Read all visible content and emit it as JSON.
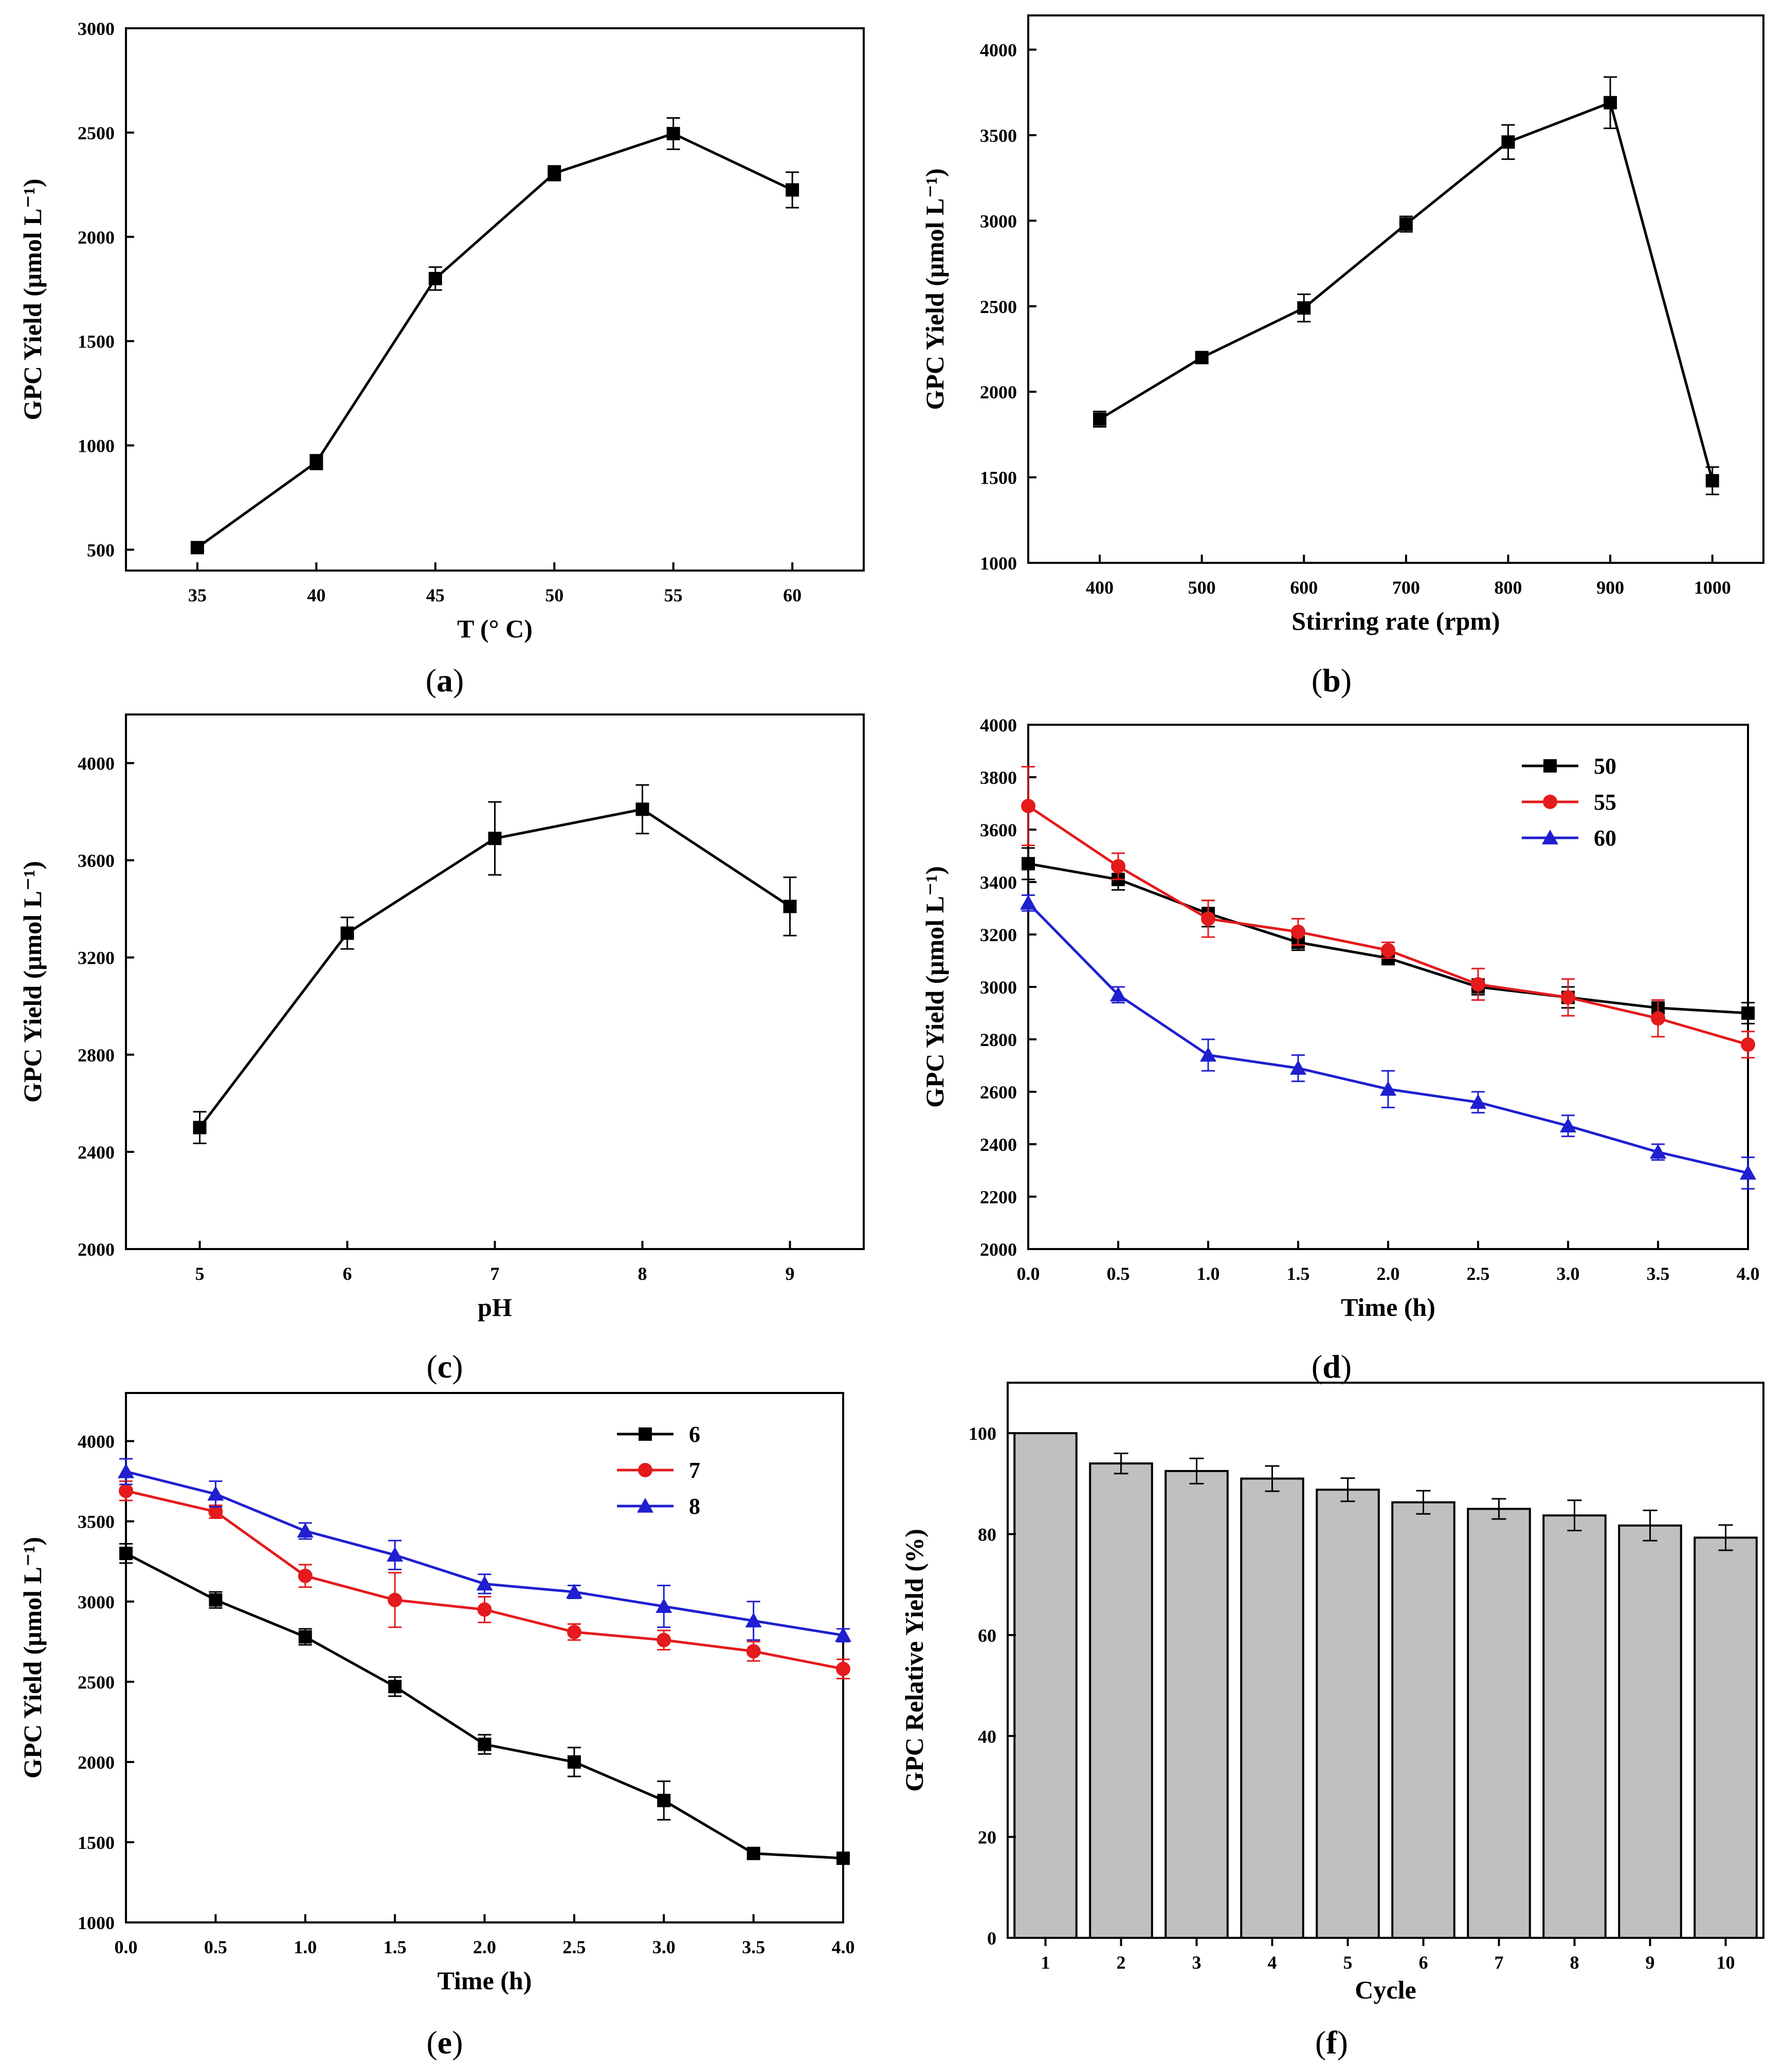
{
  "chart_data": [
    {
      "id": "a",
      "type": "line",
      "caption": "a",
      "xlabel": "T (° C)",
      "ylabel": "GPC Yield (μmol L⁻¹)",
      "xlim": [
        32,
        63
      ],
      "ylim": [
        400,
        3000
      ],
      "xticks": [
        35,
        40,
        45,
        50,
        55,
        60
      ],
      "yticks": [
        500,
        1000,
        1500,
        2000,
        2500,
        3000
      ],
      "xtick_labels": [
        "35",
        "40",
        "45",
        "50",
        "55",
        "60"
      ],
      "ytick_labels": [
        "500",
        "1000",
        "1500",
        "2000",
        "2500",
        "3000"
      ],
      "series": [
        {
          "name": "",
          "color": "#000000",
          "marker": "square",
          "x": [
            35,
            40,
            45,
            50,
            55,
            60
          ],
          "y": [
            510,
            920,
            1800,
            2305,
            2495,
            2225
          ],
          "err": [
            15,
            35,
            55,
            35,
            75,
            85
          ]
        }
      ]
    },
    {
      "id": "b",
      "type": "line",
      "caption": "b",
      "xlabel": "Stirring rate (rpm)",
      "ylabel": "GPC Yield (μmol L⁻¹)",
      "xlim": [
        330,
        1050
      ],
      "ylim": [
        1000,
        4200
      ],
      "xticks": [
        400,
        500,
        600,
        700,
        800,
        900,
        1000
      ],
      "yticks": [
        1000,
        1500,
        2000,
        2500,
        3000,
        3500,
        4000
      ],
      "xtick_labels": [
        "400",
        "500",
        "600",
        "700",
        "800",
        "900",
        "1000"
      ],
      "ytick_labels": [
        "1000",
        "1500",
        "2000",
        "2500",
        "3000",
        "3500",
        "4000"
      ],
      "series": [
        {
          "name": "",
          "color": "#000000",
          "marker": "square",
          "x": [
            400,
            500,
            600,
            700,
            800,
            900,
            1000
          ],
          "y": [
            1840,
            2200,
            2490,
            2980,
            3460,
            3690,
            1480
          ],
          "err": [
            45,
            30,
            80,
            45,
            100,
            150,
            80
          ]
        }
      ]
    },
    {
      "id": "c",
      "type": "line",
      "caption": "c",
      "xlabel": "pH",
      "ylabel": "GPC Yield (μmol L⁻¹)",
      "xlim": [
        4.5,
        9.5
      ],
      "ylim": [
        2000,
        4200
      ],
      "xticks": [
        5,
        6,
        7,
        8,
        9
      ],
      "yticks": [
        2000,
        2400,
        2800,
        3200,
        3600,
        4000
      ],
      "xtick_labels": [
        "5",
        "6",
        "7",
        "8",
        "9"
      ],
      "ytick_labels": [
        "2000",
        "2400",
        "2800",
        "3200",
        "3600",
        "4000"
      ],
      "series": [
        {
          "name": "",
          "color": "#000000",
          "marker": "square",
          "x": [
            5,
            6,
            7,
            8,
            9
          ],
          "y": [
            2500,
            3300,
            3690,
            3810,
            3410
          ],
          "err": [
            65,
            65,
            150,
            100,
            120
          ]
        }
      ]
    },
    {
      "id": "d",
      "type": "line",
      "caption": "d",
      "xlabel": "Time (h)",
      "ylabel": "GPC Yield (μmol L⁻¹)",
      "xlim": [
        0,
        4
      ],
      "ylim": [
        2000,
        4000
      ],
      "xticks": [
        0,
        0.5,
        1,
        1.5,
        2,
        2.5,
        3,
        3.5,
        4
      ],
      "yticks": [
        2000,
        2200,
        2400,
        2600,
        2800,
        3000,
        3200,
        3400,
        3600,
        3800,
        4000
      ],
      "xtick_labels": [
        "0.0",
        "0.5",
        "1.0",
        "1.5",
        "2.0",
        "2.5",
        "3.0",
        "3.5",
        "4.0"
      ],
      "ytick_labels": [
        "2000",
        "2200",
        "2400",
        "2600",
        "2800",
        "3000",
        "3200",
        "3400",
        "3600",
        "3800",
        "4000"
      ],
      "legend_position": "top-right",
      "series": [
        {
          "name": "50",
          "color": "#000000",
          "marker": "square",
          "x": [
            0,
            0.5,
            1,
            1.5,
            2,
            2.5,
            3,
            3.5,
            4
          ],
          "y": [
            3470,
            3410,
            3280,
            3170,
            3110,
            3000,
            2960,
            2920,
            2900
          ],
          "err": [
            60,
            40,
            50,
            30,
            25,
            30,
            40,
            30,
            40
          ]
        },
        {
          "name": "55",
          "color": "#e41a1c",
          "marker": "circle",
          "x": [
            0,
            0.5,
            1,
            1.5,
            2,
            2.5,
            3,
            3.5,
            4
          ],
          "y": [
            3690,
            3460,
            3260,
            3210,
            3140,
            3010,
            2960,
            2880,
            2780
          ],
          "err": [
            150,
            50,
            70,
            50,
            30,
            60,
            70,
            70,
            50
          ]
        },
        {
          "name": "60",
          "color": "#1f1fd0",
          "marker": "triangle",
          "x": [
            0,
            0.5,
            1,
            1.5,
            2,
            2.5,
            3,
            3.5,
            4
          ],
          "y": [
            3320,
            2970,
            2740,
            2690,
            2610,
            2560,
            2470,
            2370,
            2290
          ],
          "err": [
            30,
            30,
            60,
            50,
            70,
            40,
            40,
            30,
            60
          ]
        }
      ]
    },
    {
      "id": "e",
      "type": "line",
      "caption": "e",
      "xlabel": "Time (h)",
      "ylabel": "GPC Yield (μmol L⁻¹)",
      "xlim": [
        0,
        4
      ],
      "ylim": [
        1000,
        4300
      ],
      "xticks": [
        0,
        0.5,
        1,
        1.5,
        2,
        2.5,
        3,
        3.5,
        4
      ],
      "yticks": [
        1000,
        1500,
        2000,
        2500,
        3000,
        3500,
        4000
      ],
      "xtick_labels": [
        "0.0",
        "0.5",
        "1.0",
        "1.5",
        "2.0",
        "2.5",
        "3.0",
        "3.5",
        "4.0"
      ],
      "ytick_labels": [
        "1000",
        "1500",
        "2000",
        "2500",
        "3000",
        "3500",
        "4000"
      ],
      "legend_position": "top-right",
      "series": [
        {
          "name": "6",
          "color": "#000000",
          "marker": "square",
          "x": [
            0,
            0.5,
            1,
            1.5,
            2,
            2.5,
            3,
            3.5,
            4
          ],
          "y": [
            3300,
            3010,
            2780,
            2470,
            2110,
            2000,
            1760,
            1430,
            1400
          ],
          "err": [
            60,
            50,
            50,
            60,
            60,
            90,
            120,
            30,
            20
          ]
        },
        {
          "name": "7",
          "color": "#e41a1c",
          "marker": "circle",
          "x": [
            0,
            0.5,
            1,
            1.5,
            2,
            2.5,
            3,
            3.5,
            4
          ],
          "y": [
            3690,
            3560,
            3160,
            3010,
            2950,
            2810,
            2760,
            2690,
            2580
          ],
          "err": [
            60,
            40,
            70,
            170,
            80,
            50,
            60,
            60,
            60
          ]
        },
        {
          "name": "8",
          "color": "#1f1fd0",
          "marker": "triangle",
          "x": [
            0,
            0.5,
            1,
            1.5,
            2,
            2.5,
            3,
            3.5,
            4
          ],
          "y": [
            3810,
            3670,
            3440,
            3290,
            3110,
            3060,
            2970,
            2880,
            2790
          ],
          "err": [
            80,
            80,
            50,
            90,
            60,
            40,
            130,
            120,
            40
          ]
        }
      ]
    },
    {
      "id": "f",
      "type": "bar",
      "caption": "f",
      "xlabel": "Cycle",
      "ylabel": "GPC Relative Yield (%)",
      "xlim": [
        0.5,
        10.5
      ],
      "ylim": [
        0,
        110
      ],
      "yticks": [
        0,
        20,
        40,
        60,
        80,
        100
      ],
      "ytick_labels": [
        "0",
        "20",
        "40",
        "60",
        "80",
        "100"
      ],
      "categories": [
        "1",
        "2",
        "3",
        "4",
        "5",
        "6",
        "7",
        "8",
        "9",
        "10"
      ],
      "values": [
        100,
        94,
        92.5,
        91,
        88.8,
        86.3,
        85,
        83.7,
        81.7,
        79.3
      ],
      "err": [
        0,
        2,
        2.5,
        2.5,
        2.3,
        2.3,
        2,
        3,
        3,
        2.5
      ],
      "bar_color": "#c0c0c0"
    }
  ]
}
